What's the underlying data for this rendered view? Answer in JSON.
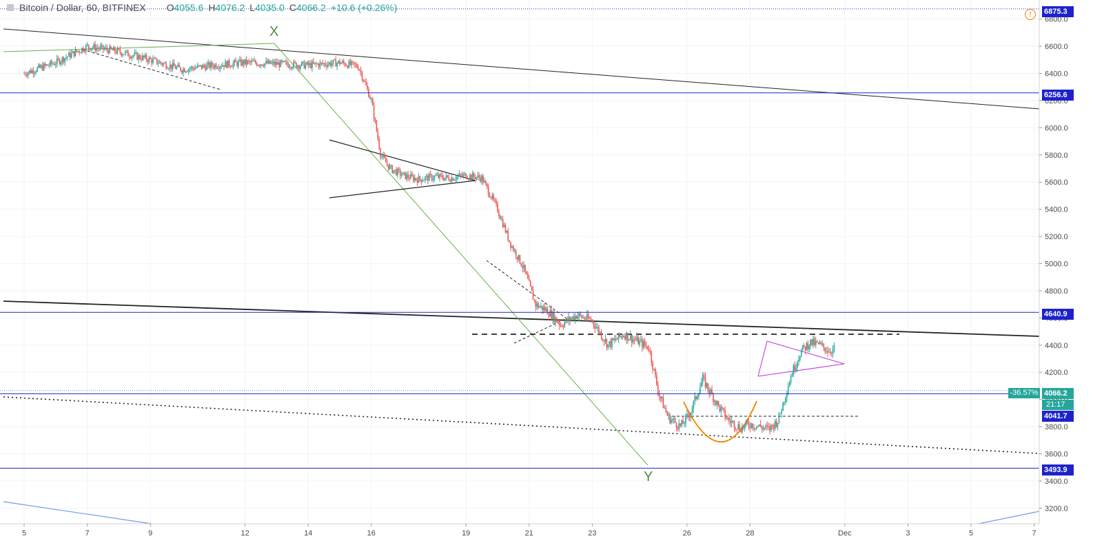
{
  "header": {
    "symbol": "Bitcoin / Dollar, 60, BITFINEX",
    "open_label": "O",
    "open": "4055.6",
    "high_label": "H",
    "high": "4076.2",
    "low_label": "L",
    "low": "4035.0",
    "close_label": "C",
    "close": "4066.2",
    "change": "+10.6 (+0.26%)"
  },
  "price_labels": {
    "top": "6875.3",
    "level_6256": "6256.6",
    "level_4640": "4640.9",
    "current": "4066.2",
    "current_change": "-36.57%",
    "countdown": "21:17",
    "level_4041": "4041.7",
    "level_3493": "3493.9"
  },
  "annotations": {
    "x_point": "X",
    "y_point": "Y"
  },
  "colors": {
    "up": "#26a69a",
    "down": "#ef5350",
    "hline": "#1e22cc",
    "green_line": "#66b04a",
    "purple": "#c030e0",
    "orange": "#f08a00",
    "blue_light": "#6c9ee8"
  },
  "chart_data": {
    "type": "line",
    "symbol": "Bitcoin / Dollar",
    "interval": "60",
    "exchange": "BITFINEX",
    "y_ticks": [
      3200,
      3400,
      3600,
      3800,
      4000,
      4200,
      4400,
      4600,
      4800,
      5000,
      5200,
      5400,
      5600,
      5800,
      6000,
      6200,
      6400,
      6600,
      6800
    ],
    "x_ticks": [
      "5",
      "7",
      "9",
      "12",
      "14",
      "16",
      "19",
      "21",
      "23",
      "26",
      "28",
      "Dec",
      "3",
      "5",
      "7"
    ],
    "ylim": [
      3085,
      6915
    ],
    "horizontal_levels": [
      6875.3,
      6256.6,
      4640.9,
      4066.2,
      4041.7,
      3493.9
    ],
    "series": [
      {
        "values_x_days": [
          0,
          1,
          2,
          3,
          4,
          5,
          6,
          7,
          8,
          9,
          10,
          10.6,
          11,
          11.3,
          11.6,
          12,
          12.5,
          13,
          13.5,
          14,
          14.5,
          15,
          15.4,
          15.8,
          16.2,
          16.6,
          17,
          17.5,
          18,
          18.5,
          19,
          19.5,
          19.8,
          20.1,
          20.4,
          20.8,
          21.1,
          21.5,
          22,
          22.3,
          22.7,
          23,
          23.3,
          23.6,
          23.9,
          24.1,
          24.3,
          24.6,
          24.9,
          25.2,
          25.5,
          25.8,
          26.1,
          26.5,
          26.8,
          27.1,
          27.4,
          27.8,
          28.1,
          28.4,
          28.7,
          29.0,
          29.3,
          29.6,
          29.9,
          30.1
        ],
        "values": [
          6400,
          6480,
          6600,
          6560,
          6500,
          6430,
          6460,
          6480,
          6470,
          6460,
          6480,
          6450,
          6200,
          5800,
          5700,
          5650,
          5620,
          5640,
          5630,
          5650,
          5630,
          5400,
          5150,
          4980,
          4700,
          4650,
          4550,
          4620,
          4580,
          4400,
          4480,
          4420,
          4380,
          4050,
          3870,
          3800,
          3900,
          4150,
          3950,
          3850,
          3790,
          3820,
          3800,
          3780,
          3850,
          4020,
          4180,
          4350,
          4420,
          4400,
          4360,
          4380,
          4320,
          4300,
          4250,
          4180,
          4066,
          4066,
          4066,
          4066,
          4066,
          4066,
          4066,
          4066,
          4066,
          4066
        ]
      }
    ]
  }
}
